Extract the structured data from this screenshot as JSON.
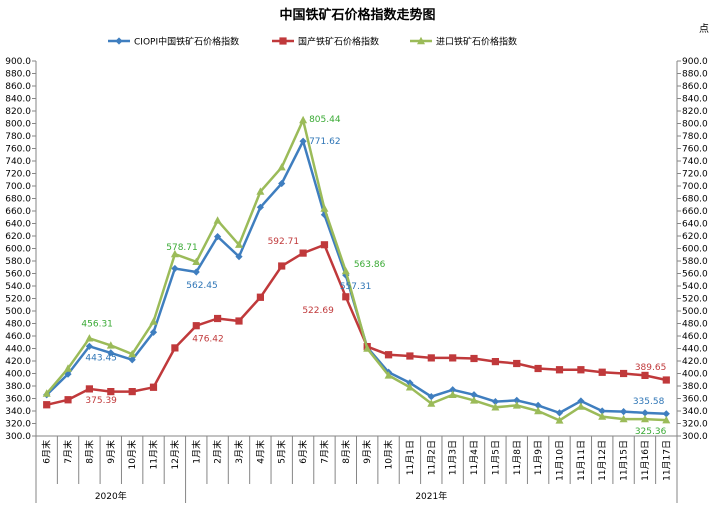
{
  "chart_data": {
    "type": "line",
    "title": "中国铁矿石价格指数走势图",
    "y_unit": "点",
    "ylim": [
      300,
      900
    ],
    "y_step": 20,
    "y_ticks": [
      "300.0",
      "320.0",
      "340.0",
      "360.0",
      "380.0",
      "400.0",
      "420.0",
      "440.0",
      "460.0",
      "480.0",
      "500.0",
      "520.0",
      "540.0",
      "560.0",
      "580.0",
      "600.0",
      "620.0",
      "640.0",
      "660.0",
      "680.0",
      "700.0",
      "720.0",
      "740.0",
      "760.0",
      "780.0",
      "800.0",
      "820.0",
      "840.0",
      "860.0",
      "880.0",
      "900.0"
    ],
    "legend_position": "top",
    "categories": [
      "6月末",
      "7月末",
      "8月末",
      "9月末",
      "10月末",
      "11月末",
      "12月末",
      "1月末",
      "2月末",
      "3月末",
      "4月末",
      "5月末",
      "6月末",
      "7月末",
      "8月末",
      "9月末",
      "10月末",
      "11月1日",
      "11月2日",
      "11月3日",
      "11月4日",
      "11月5日",
      "11月8日",
      "11月9日",
      "11月10日",
      "11月11日",
      "11月12日",
      "11月15日",
      "11月16日",
      "11月17日"
    ],
    "year_groups": [
      {
        "label": "2020年",
        "start": 0,
        "end": 6
      },
      {
        "label": "2021年",
        "start": 7,
        "end": 29
      }
    ],
    "series": [
      {
        "name": "CIOPI中国铁矿石价格指数",
        "color": "#3f7ebf",
        "marker": "diamond",
        "values": [
          366,
          399,
          443.45,
          433,
          422,
          466,
          568,
          562.45,
          619,
          587,
          666,
          704,
          771.62,
          654,
          557.31,
          442,
          402,
          385,
          363,
          374,
          366,
          355,
          357,
          349,
          337,
          356,
          340,
          339,
          337,
          335.58
        ]
      },
      {
        "name": "国产铁矿石价格指数",
        "color": "#c0393b",
        "marker": "square",
        "values": [
          350,
          358,
          375.39,
          371,
          371,
          378,
          441,
          476.42,
          488,
          484,
          522,
          572,
          592.71,
          606,
          522.69,
          443,
          430,
          428,
          425,
          425,
          424,
          419,
          416,
          408,
          406,
          406,
          402,
          400,
          397,
          389.65
        ]
      },
      {
        "name": "进口铁矿石价格指数",
        "color": "#9bbb59",
        "marker": "triangle",
        "values": [
          368,
          408,
          456.31,
          445,
          431,
          483,
          591,
          578.71,
          645,
          606,
          691,
          730,
          805.44,
          664,
          563.86,
          440,
          397,
          378,
          352,
          366,
          357,
          346,
          349,
          340,
          325,
          347,
          331,
          327,
          327,
          325.36
        ]
      }
    ],
    "data_labels": [
      {
        "series": 0,
        "index": 2,
        "text": "443.45"
      },
      {
        "series": 0,
        "index": 7,
        "text": "562.45"
      },
      {
        "series": 0,
        "index": 12,
        "text": "771.62"
      },
      {
        "series": 0,
        "index": 14,
        "text": "557.31"
      },
      {
        "series": 0,
        "index": 29,
        "text": "335.58"
      },
      {
        "series": 1,
        "index": 2,
        "text": "375.39"
      },
      {
        "series": 1,
        "index": 7,
        "text": "476.42"
      },
      {
        "series": 1,
        "index": 12,
        "text": "592.71"
      },
      {
        "series": 1,
        "index": 14,
        "text": "522.69"
      },
      {
        "series": 1,
        "index": 29,
        "text": "389.65"
      },
      {
        "series": 2,
        "index": 2,
        "text": "456.31"
      },
      {
        "series": 2,
        "index": 7,
        "text": "578.71"
      },
      {
        "series": 2,
        "index": 12,
        "text": "805.44"
      },
      {
        "series": 2,
        "index": 14,
        "text": "563.86"
      },
      {
        "series": 2,
        "index": 29,
        "text": "325.36"
      }
    ]
  }
}
